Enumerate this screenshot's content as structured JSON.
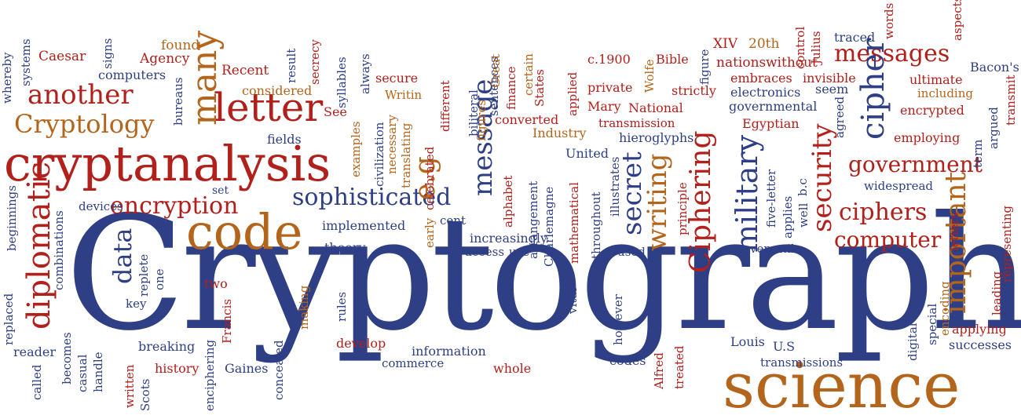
{
  "colors": {
    "blue": "#2e3f86",
    "red": "#b1201b",
    "orange": "#b4651c",
    "background": "#ffffff"
  },
  "words": {
    "cryptography": "Cryptography",
    "science": "science",
    "cryptanalysis": "cryptanalysis",
    "code": "code",
    "letter": "letter",
    "cryptology": "Cryptology",
    "another": "another",
    "many": "many",
    "encryption": "encryption",
    "sophisticated": "sophisticated",
    "messages": "messages",
    "government": "government",
    "ciphers": "ciphers",
    "computer": "computer",
    "cipher": "cipher",
    "security": "security",
    "important": "important",
    "military": "military",
    "ciphering": "Ciphering",
    "writing": "writing",
    "secret": "secret",
    "message": "message",
    "eg": "e.g",
    "diplomatic": "diplomatic",
    "data": "data",
    "caesar": "Caesar",
    "agency": "Agency",
    "found": "found",
    "recent": "Recent",
    "computers": "computers",
    "considered": "considered",
    "see": "See",
    "secure": "secure",
    "writin": "Writin",
    "c1900": "c.1900",
    "bible": "Bible",
    "xiv": "XIV",
    "twentieth": "20th",
    "nations": "nations",
    "without": "without",
    "traced": "traced",
    "bacons": "Bacon's",
    "embraces": "embraces",
    "invisible": "invisible",
    "ultimate": "ultimate",
    "private": "private",
    "strictly": "strictly",
    "including": "including",
    "electronics": "electronics",
    "seem": "seem",
    "mary": "Mary",
    "national": "National",
    "governmental": "governmental",
    "encrypted": "encrypted",
    "converted": "converted",
    "transmission": "transmission",
    "egyptian": "Egyptian",
    "industry": "Industry",
    "hieroglyphs": "hieroglyphs",
    "employing": "employing",
    "united": "United",
    "fields": "fields",
    "set": "set",
    "devices": "devices",
    "widespread": "widespread",
    "implemented": "implemented",
    "cent": "cent",
    "theory": "theory",
    "increasingly": "increasingly",
    "access": "access",
    "use": "use",
    "used": "used",
    "versatile": "versatile",
    "two": "two",
    "key": "key",
    "breaking": "breaking",
    "develop": "develop",
    "information": "information",
    "commerce": "commerce",
    "whole": "whole",
    "codes": "codes",
    "louis": "Louis",
    "us": "U.S",
    "transmissions": "transmissions",
    "applying": "applying",
    "successes": "successes",
    "reader": "reader",
    "history": "history",
    "gaines": "Gaines",
    "whereby": "whereby",
    "systems": "systems",
    "signs": "signs",
    "bureaus": "bureaus",
    "result": "result",
    "secrecy": "secrecy",
    "syllables": "syllables",
    "always": "always",
    "sentences": "sentences",
    "different": "different",
    "biliteral": "biliteral",
    "figures": "figures",
    "great": "Great",
    "finance": "finance",
    "certain": "certain",
    "states": "States",
    "applied": "applied",
    "wolfe": "Wolfe",
    "figure": "figure",
    "control": "control",
    "julius": "Julius",
    "words": "words",
    "aspects": "aspects",
    "transmit": "transmit",
    "argued": "argued",
    "term": "term",
    "agreed": "agreed",
    "bc": "b.c",
    "applies": "applies",
    "well": "well",
    "fiveletter": "five-letter",
    "letters": "letters",
    "representing": "representing",
    "leading": "leading",
    "encoding": "encoding",
    "special": "special",
    "digital": "digital",
    "examples": "examples",
    "civilization": "civilization",
    "necessary": "necessary",
    "translating": "translating",
    "celebrated": "celebrated",
    "alphabet": "alphabet",
    "charlemagne": "Charlemagne",
    "arrangement": "arrangement",
    "early": "early",
    "mathematical": "mathematical",
    "throughout": "throughout",
    "illustrates": "illustrates",
    "principle": "principle",
    "beginnings": "beginnings",
    "combinations": "combinations",
    "replaced": "replaced",
    "becomes": "becomes",
    "called": "called",
    "casual": "casual",
    "handle": "handle",
    "written": "written",
    "scots": "Scots",
    "enciphering": "enciphering",
    "francis": "Francis",
    "making": "making",
    "concealed": "concealed",
    "rules": "rules",
    "replete": "replete",
    "one": "one",
    "form": "form",
    "vital": "vital",
    "however": "however",
    "alfred": "Alfred",
    "treated": "treated"
  }
}
